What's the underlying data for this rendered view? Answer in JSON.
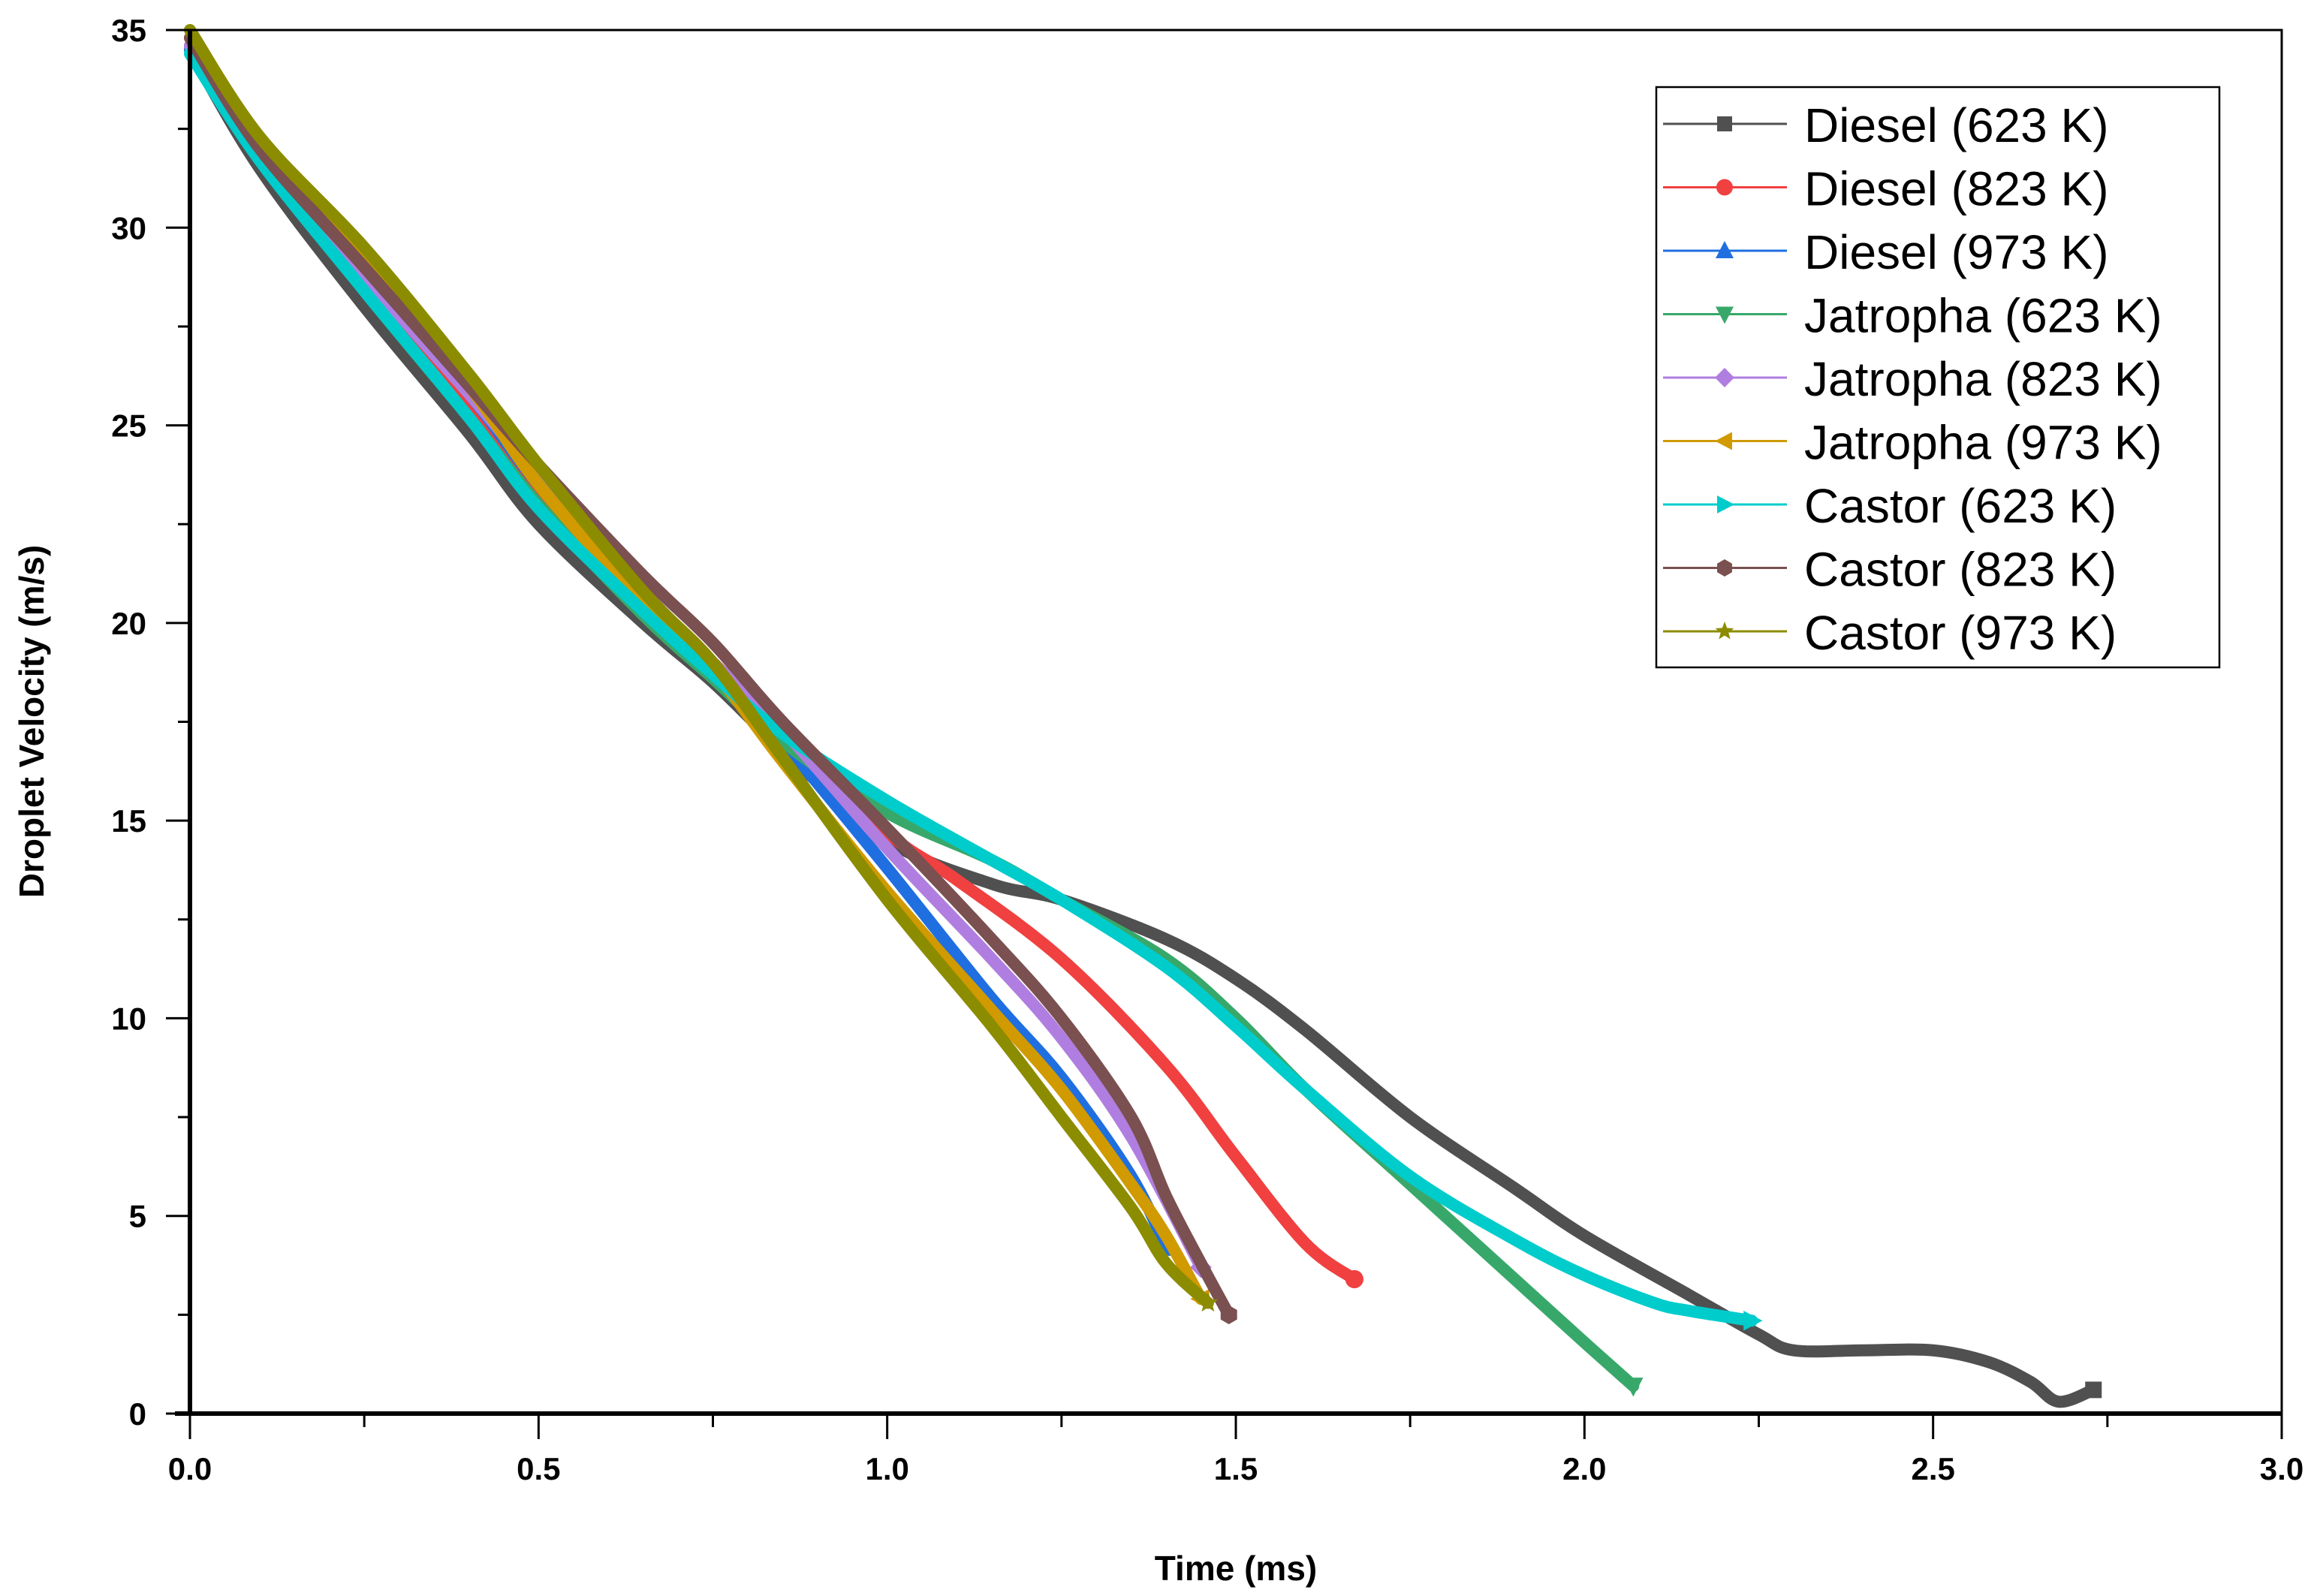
{
  "chart_data": {
    "type": "line",
    "title": "",
    "xlabel": "Time (ms)",
    "ylabel": "Droplet Velocity (m/s)",
    "xlim": [
      0,
      3.0
    ],
    "ylim": [
      0,
      35
    ],
    "xticks": [
      "0.0",
      "0.5",
      "1.0",
      "1.5",
      "2.0",
      "2.5",
      "3.0"
    ],
    "yticks": [
      "0",
      "5",
      "10",
      "15",
      "20",
      "25",
      "30",
      "35"
    ],
    "grid": false,
    "legend_position": "top-right",
    "series": [
      {
        "name": "Diesel (623 K)",
        "color": "#505050",
        "marker": "square",
        "x": [
          0,
          0.1,
          0.25,
          0.4,
          0.5,
          0.65,
          0.75,
          0.85,
          1.0,
          1.15,
          1.25,
          1.4,
          1.5,
          1.6,
          1.75,
          1.9,
          2.0,
          2.15,
          2.25,
          2.3,
          2.4,
          2.5,
          2.58,
          2.64,
          2.68,
          2.73
        ],
        "y": [
          34.5,
          31.5,
          28.0,
          24.8,
          22.5,
          20.0,
          18.5,
          16.8,
          14.5,
          13.4,
          13.0,
          12.0,
          11.0,
          9.7,
          7.5,
          5.7,
          4.5,
          3.0,
          2.0,
          1.6,
          1.6,
          1.6,
          1.3,
          0.8,
          0.3,
          0.6
        ]
      },
      {
        "name": "Diesel (823 K)",
        "color": "#f04040",
        "marker": "circle",
        "x": [
          0,
          0.1,
          0.25,
          0.4,
          0.5,
          0.65,
          0.75,
          0.85,
          1.0,
          1.1,
          1.25,
          1.4,
          1.5,
          1.6,
          1.67
        ],
        "y": [
          34.6,
          31.8,
          28.6,
          25.5,
          23.3,
          20.6,
          19.0,
          17.3,
          14.7,
          13.5,
          11.5,
          8.8,
          6.5,
          4.3,
          3.4
        ]
      },
      {
        "name": "Diesel (973 K)",
        "color": "#1f6fe0",
        "marker": "triangle-up",
        "x": [
          0,
          0.1,
          0.25,
          0.4,
          0.5,
          0.65,
          0.75,
          0.85,
          1.0,
          1.15,
          1.25,
          1.35,
          1.4
        ],
        "y": [
          34.5,
          31.8,
          28.8,
          25.8,
          23.5,
          20.7,
          19.0,
          17.0,
          13.8,
          10.5,
          8.5,
          6.0,
          4.2
        ]
      },
      {
        "name": "Jatropha (623 K)",
        "color": "#38a86a",
        "marker": "triangle-down",
        "x": [
          0,
          0.1,
          0.25,
          0.4,
          0.5,
          0.65,
          0.75,
          0.85,
          1.0,
          1.15,
          1.25,
          1.4,
          1.5,
          1.6,
          1.75,
          1.9,
          2.0,
          2.07
        ],
        "y": [
          34.6,
          31.8,
          28.4,
          25.2,
          23.0,
          20.2,
          18.6,
          17.0,
          15.2,
          14.0,
          13.0,
          11.5,
          10.0,
          8.2,
          5.8,
          3.4,
          1.8,
          0.7
        ]
      },
      {
        "name": "Jatropha (823 K)",
        "color": "#b07ee0",
        "marker": "diamond",
        "x": [
          0,
          0.1,
          0.25,
          0.4,
          0.5,
          0.65,
          0.75,
          0.85,
          1.0,
          1.15,
          1.25,
          1.35,
          1.45
        ],
        "y": [
          34.6,
          31.9,
          28.8,
          25.8,
          23.7,
          20.8,
          19.0,
          17.3,
          14.3,
          11.5,
          9.5,
          7.0,
          3.7
        ]
      },
      {
        "name": "Jatropha (973 K)",
        "color": "#d09a00",
        "marker": "triangle-left",
        "x": [
          0,
          0.1,
          0.25,
          0.4,
          0.5,
          0.65,
          0.75,
          0.85,
          1.0,
          1.15,
          1.25,
          1.35,
          1.4,
          1.45
        ],
        "y": [
          34.8,
          32.2,
          29.2,
          26.0,
          23.5,
          20.5,
          18.8,
          16.5,
          13.2,
          10.2,
          8.2,
          5.8,
          4.5,
          2.9
        ]
      },
      {
        "name": "Castor (623 K)",
        "color": "#00cccc",
        "marker": "triangle-right",
        "x": [
          0,
          0.1,
          0.25,
          0.4,
          0.5,
          0.65,
          0.75,
          0.85,
          1.0,
          1.15,
          1.25,
          1.4,
          1.5,
          1.6,
          1.75,
          1.9,
          2.0,
          2.1,
          2.15,
          2.24
        ],
        "y": [
          34.4,
          31.7,
          28.4,
          25.2,
          22.9,
          20.3,
          18.7,
          17.2,
          15.5,
          14.0,
          13.0,
          11.3,
          9.8,
          8.2,
          6.0,
          4.4,
          3.5,
          2.8,
          2.6,
          2.35
        ]
      },
      {
        "name": "Castor (823 K)",
        "color": "#7a5050",
        "marker": "hexagon",
        "x": [
          0,
          0.1,
          0.25,
          0.4,
          0.5,
          0.65,
          0.75,
          0.85,
          1.0,
          1.15,
          1.25,
          1.35,
          1.4,
          1.45,
          1.49
        ],
        "y": [
          34.8,
          32.0,
          29.0,
          26.0,
          24.0,
          21.2,
          19.5,
          17.5,
          14.8,
          12.0,
          10.0,
          7.5,
          5.5,
          3.8,
          2.5
        ]
      },
      {
        "name": "Castor (973 K)",
        "color": "#8c8c00",
        "marker": "star",
        "x": [
          0,
          0.1,
          0.25,
          0.4,
          0.5,
          0.65,
          0.75,
          0.85,
          1.0,
          1.15,
          1.25,
          1.35,
          1.4,
          1.46
        ],
        "y": [
          35.0,
          32.3,
          29.5,
          26.3,
          24.0,
          20.8,
          19.0,
          16.6,
          13.0,
          9.8,
          7.5,
          5.2,
          3.8,
          2.8
        ]
      }
    ]
  }
}
